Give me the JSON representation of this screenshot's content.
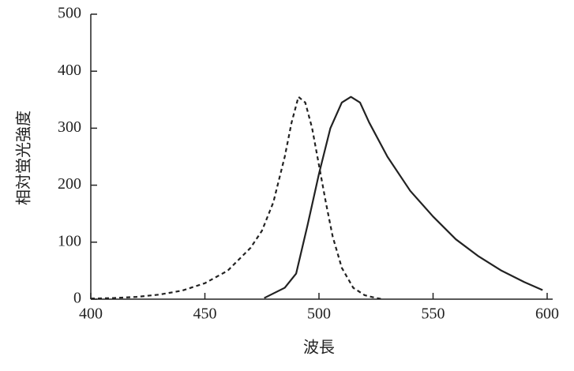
{
  "chart_data": {
    "type": "line",
    "x_label": "波長",
    "y_label": "相対蛍光強度",
    "xlim": [
      400,
      600
    ],
    "xticks": [
      400,
      450,
      500,
      550,
      600
    ],
    "ylim": [
      0,
      500
    ],
    "yticks": [
      0,
      100,
      200,
      300,
      400,
      500
    ],
    "grid": false,
    "series": [
      {
        "color": "#222222",
        "style": "dashed",
        "x": [
          400,
          410,
          420,
          430,
          440,
          450,
          460,
          470,
          475,
          480,
          485,
          488,
          491,
          494,
          497,
          500,
          503,
          506,
          510,
          515,
          520,
          525,
          528
        ],
        "values": [
          1,
          2,
          4,
          8,
          15,
          28,
          50,
          90,
          120,
          170,
          250,
          310,
          355,
          345,
          300,
          235,
          170,
          110,
          55,
          20,
          7,
          2,
          0
        ]
      },
      {
        "color": "#222222",
        "style": "solid",
        "x": [
          476,
          485,
          490,
          495,
          500,
          505,
          510,
          514,
          518,
          522,
          530,
          540,
          550,
          560,
          570,
          580,
          590,
          598
        ],
        "values": [
          2,
          20,
          45,
          130,
          220,
          300,
          345,
          355,
          345,
          310,
          250,
          190,
          145,
          105,
          75,
          50,
          30,
          16
        ]
      }
    ]
  }
}
